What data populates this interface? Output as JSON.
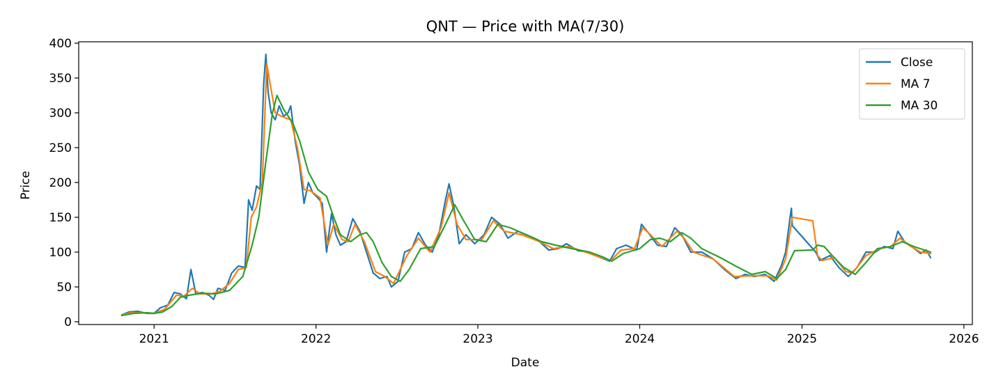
{
  "chart_data": {
    "type": "line",
    "title": "QNT — Price with MA(7/30)",
    "xlabel": "Date",
    "ylabel": "Price",
    "x_range": [
      "2020-07-15",
      "2026-01-20"
    ],
    "ylim": [
      -4,
      402
    ],
    "x_ticks": [
      "2021-01-01",
      "2022-01-01",
      "2023-01-01",
      "2024-01-01",
      "2025-01-01",
      "2026-01-01"
    ],
    "x_tick_labels": [
      "2021",
      "2022",
      "2023",
      "2024",
      "2025",
      "2026"
    ],
    "y_ticks": [
      0,
      50,
      100,
      150,
      200,
      250,
      300,
      350,
      400
    ],
    "y_tick_labels": [
      "0",
      "50",
      "100",
      "150",
      "200",
      "250",
      "300",
      "350",
      "400"
    ],
    "grid": false,
    "legend_position": "top-right",
    "series": [
      {
        "name": "Close",
        "color": "#1f77b4",
        "points": [
          [
            "2020-10-20",
            10
          ],
          [
            "2020-11-05",
            14
          ],
          [
            "2020-11-25",
            15
          ],
          [
            "2020-12-15",
            12
          ],
          [
            "2021-01-01",
            12
          ],
          [
            "2021-01-15",
            20
          ],
          [
            "2021-02-01",
            24
          ],
          [
            "2021-02-15",
            42
          ],
          [
            "2021-03-01",
            40
          ],
          [
            "2021-03-15",
            33
          ],
          [
            "2021-03-25",
            75
          ],
          [
            "2021-04-05",
            40
          ],
          [
            "2021-04-20",
            42
          ],
          [
            "2021-05-05",
            38
          ],
          [
            "2021-05-15",
            32
          ],
          [
            "2021-05-25",
            48
          ],
          [
            "2021-06-10",
            45
          ],
          [
            "2021-06-25",
            70
          ],
          [
            "2021-07-10",
            80
          ],
          [
            "2021-07-25",
            78
          ],
          [
            "2021-08-02",
            175
          ],
          [
            "2021-08-10",
            160
          ],
          [
            "2021-08-20",
            195
          ],
          [
            "2021-08-28",
            190
          ],
          [
            "2021-09-05",
            340
          ],
          [
            "2021-09-10",
            384
          ],
          [
            "2021-09-15",
            330
          ],
          [
            "2021-09-22",
            300
          ],
          [
            "2021-10-01",
            290
          ],
          [
            "2021-10-10",
            310
          ],
          [
            "2021-10-20",
            295
          ],
          [
            "2021-10-30",
            300
          ],
          [
            "2021-11-05",
            310
          ],
          [
            "2021-11-15",
            260
          ],
          [
            "2021-11-25",
            225
          ],
          [
            "2021-12-05",
            170
          ],
          [
            "2021-12-15",
            200
          ],
          [
            "2021-12-25",
            185
          ],
          [
            "2022-01-05",
            178
          ],
          [
            "2022-01-15",
            170
          ],
          [
            "2022-01-25",
            100
          ],
          [
            "2022-02-05",
            155
          ],
          [
            "2022-02-15",
            125
          ],
          [
            "2022-02-25",
            110
          ],
          [
            "2022-03-10",
            115
          ],
          [
            "2022-03-25",
            148
          ],
          [
            "2022-04-10",
            130
          ],
          [
            "2022-04-25",
            100
          ],
          [
            "2022-05-10",
            70
          ],
          [
            "2022-05-25",
            62
          ],
          [
            "2022-06-10",
            65
          ],
          [
            "2022-06-20",
            50
          ],
          [
            "2022-07-05",
            58
          ],
          [
            "2022-07-20",
            100
          ],
          [
            "2022-08-05",
            105
          ],
          [
            "2022-08-20",
            128
          ],
          [
            "2022-09-05",
            110
          ],
          [
            "2022-09-20",
            100
          ],
          [
            "2022-10-05",
            125
          ],
          [
            "2022-10-20",
            175
          ],
          [
            "2022-10-28",
            198
          ],
          [
            "2022-11-08",
            165
          ],
          [
            "2022-11-20",
            112
          ],
          [
            "2022-12-05",
            125
          ],
          [
            "2022-12-25",
            112
          ],
          [
            "2023-01-15",
            125
          ],
          [
            "2023-02-01",
            150
          ],
          [
            "2023-02-20",
            140
          ],
          [
            "2023-03-10",
            120
          ],
          [
            "2023-04-01",
            130
          ],
          [
            "2023-04-20",
            125
          ],
          [
            "2023-05-15",
            118
          ],
          [
            "2023-06-10",
            103
          ],
          [
            "2023-07-01",
            105
          ],
          [
            "2023-07-20",
            112
          ],
          [
            "2023-08-15",
            102
          ],
          [
            "2023-09-10",
            100
          ],
          [
            "2023-10-05",
            92
          ],
          [
            "2023-10-25",
            87
          ],
          [
            "2023-11-10",
            105
          ],
          [
            "2023-12-01",
            110
          ],
          [
            "2023-12-25",
            103
          ],
          [
            "2024-01-05",
            140
          ],
          [
            "2024-01-20",
            128
          ],
          [
            "2024-02-10",
            110
          ],
          [
            "2024-03-01",
            108
          ],
          [
            "2024-03-20",
            135
          ],
          [
            "2024-04-05",
            125
          ],
          [
            "2024-04-25",
            100
          ],
          [
            "2024-05-20",
            100
          ],
          [
            "2024-06-15",
            90
          ],
          [
            "2024-07-10",
            75
          ],
          [
            "2024-08-05",
            62
          ],
          [
            "2024-08-25",
            68
          ],
          [
            "2024-09-15",
            65
          ],
          [
            "2024-10-10",
            68
          ],
          [
            "2024-10-30",
            58
          ],
          [
            "2024-11-15",
            80
          ],
          [
            "2024-11-25",
            100
          ],
          [
            "2024-12-05",
            150
          ],
          [
            "2024-12-08",
            163
          ],
          [
            "2024-12-10",
            138
          ],
          [
            "2025-02-01",
            100
          ],
          [
            "2025-02-10",
            88
          ],
          [
            "2025-03-05",
            95
          ],
          [
            "2025-03-25",
            78
          ],
          [
            "2025-04-15",
            65
          ],
          [
            "2025-05-05",
            78
          ],
          [
            "2025-05-25",
            100
          ],
          [
            "2025-06-15",
            100
          ],
          [
            "2025-07-05",
            108
          ],
          [
            "2025-07-25",
            105
          ],
          [
            "2025-08-05",
            130
          ],
          [
            "2025-08-20",
            115
          ],
          [
            "2025-09-05",
            108
          ],
          [
            "2025-09-25",
            98
          ],
          [
            "2025-10-08",
            103
          ],
          [
            "2025-10-18",
            92
          ]
        ]
      },
      {
        "name": "MA 7",
        "color": "#ff7f0e",
        "points": [
          [
            "2020-10-20",
            10
          ],
          [
            "2020-11-10",
            13
          ],
          [
            "2020-12-01",
            13
          ],
          [
            "2021-01-01",
            12
          ],
          [
            "2021-01-25",
            18
          ],
          [
            "2021-02-20",
            38
          ],
          [
            "2021-03-10",
            37
          ],
          [
            "2021-03-28",
            48
          ],
          [
            "2021-04-15",
            40
          ],
          [
            "2021-05-10",
            40
          ],
          [
            "2021-05-30",
            44
          ],
          [
            "2021-06-20",
            55
          ],
          [
            "2021-07-10",
            75
          ],
          [
            "2021-07-28",
            78
          ],
          [
            "2021-08-08",
            150
          ],
          [
            "2021-08-20",
            165
          ],
          [
            "2021-09-02",
            200
          ],
          [
            "2021-09-12",
            370
          ],
          [
            "2021-09-20",
            340
          ],
          [
            "2021-10-01",
            300
          ],
          [
            "2021-10-15",
            295
          ],
          [
            "2021-11-05",
            290
          ],
          [
            "2021-11-20",
            250
          ],
          [
            "2021-12-05",
            190
          ],
          [
            "2021-12-20",
            188
          ],
          [
            "2022-01-10",
            178
          ],
          [
            "2022-01-28",
            110
          ],
          [
            "2022-02-10",
            140
          ],
          [
            "2022-03-01",
            118
          ],
          [
            "2022-03-15",
            115
          ],
          [
            "2022-03-30",
            140
          ],
          [
            "2022-04-20",
            115
          ],
          [
            "2022-05-15",
            72
          ],
          [
            "2022-06-05",
            65
          ],
          [
            "2022-06-25",
            55
          ],
          [
            "2022-07-25",
            95
          ],
          [
            "2022-08-20",
            120
          ],
          [
            "2022-09-15",
            100
          ],
          [
            "2022-10-10",
            135
          ],
          [
            "2022-10-28",
            185
          ],
          [
            "2022-11-15",
            140
          ],
          [
            "2022-12-05",
            118
          ],
          [
            "2023-01-10",
            118
          ],
          [
            "2023-02-05",
            145
          ],
          [
            "2023-03-01",
            130
          ],
          [
            "2023-04-10",
            125
          ],
          [
            "2023-05-20",
            115
          ],
          [
            "2023-06-20",
            105
          ],
          [
            "2023-07-25",
            108
          ],
          [
            "2023-09-01",
            100
          ],
          [
            "2023-10-01",
            93
          ],
          [
            "2023-10-28",
            88
          ],
          [
            "2023-11-20",
            103
          ],
          [
            "2023-12-20",
            105
          ],
          [
            "2024-01-08",
            135
          ],
          [
            "2024-01-25",
            125
          ],
          [
            "2024-02-20",
            108
          ],
          [
            "2024-03-25",
            130
          ],
          [
            "2024-04-10",
            120
          ],
          [
            "2024-05-01",
            100
          ],
          [
            "2024-06-15",
            90
          ],
          [
            "2024-08-01",
            65
          ],
          [
            "2024-09-10",
            66
          ],
          [
            "2024-10-15",
            66
          ],
          [
            "2024-11-05",
            60
          ],
          [
            "2024-11-25",
            90
          ],
          [
            "2024-12-10",
            150
          ],
          [
            "2025-01-25",
            145
          ],
          [
            "2025-02-05",
            95
          ],
          [
            "2025-02-15",
            88
          ],
          [
            "2025-03-15",
            92
          ],
          [
            "2025-04-10",
            72
          ],
          [
            "2025-04-25",
            70
          ],
          [
            "2025-05-25",
            95
          ],
          [
            "2025-06-25",
            105
          ],
          [
            "2025-07-20",
            108
          ],
          [
            "2025-08-10",
            120
          ],
          [
            "2025-08-30",
            110
          ],
          [
            "2025-09-25",
            100
          ],
          [
            "2025-10-18",
            98
          ]
        ]
      },
      {
        "name": "MA 30",
        "color": "#2ca02c",
        "points": [
          [
            "2020-10-20",
            9
          ],
          [
            "2020-11-15",
            12
          ],
          [
            "2020-12-15",
            13
          ],
          [
            "2021-01-01",
            12
          ],
          [
            "2021-01-20",
            14
          ],
          [
            "2021-02-10",
            22
          ],
          [
            "2021-03-01",
            35
          ],
          [
            "2021-03-20",
            38
          ],
          [
            "2021-04-20",
            41
          ],
          [
            "2021-05-20",
            40
          ],
          [
            "2021-06-20",
            45
          ],
          [
            "2021-07-20",
            65
          ],
          [
            "2021-08-10",
            110
          ],
          [
            "2021-08-25",
            150
          ],
          [
            "2021-09-10",
            230
          ],
          [
            "2021-09-25",
            300
          ],
          [
            "2021-10-05",
            325
          ],
          [
            "2021-10-20",
            305
          ],
          [
            "2021-11-10",
            285
          ],
          [
            "2021-11-25",
            260
          ],
          [
            "2021-12-15",
            215
          ],
          [
            "2022-01-05",
            190
          ],
          [
            "2022-01-25",
            180
          ],
          [
            "2022-02-10",
            150
          ],
          [
            "2022-02-25",
            125
          ],
          [
            "2022-03-20",
            115
          ],
          [
            "2022-04-10",
            125
          ],
          [
            "2022-04-25",
            128
          ],
          [
            "2022-05-10",
            115
          ],
          [
            "2022-05-30",
            85
          ],
          [
            "2022-06-20",
            65
          ],
          [
            "2022-07-10",
            58
          ],
          [
            "2022-07-30",
            75
          ],
          [
            "2022-08-25",
            105
          ],
          [
            "2022-09-25",
            108
          ],
          [
            "2022-10-20",
            140
          ],
          [
            "2022-11-10",
            168
          ],
          [
            "2022-11-30",
            145
          ],
          [
            "2022-12-25",
            118
          ],
          [
            "2023-01-20",
            115
          ],
          [
            "2023-02-15",
            140
          ],
          [
            "2023-03-15",
            135
          ],
          [
            "2023-04-20",
            125
          ],
          [
            "2023-05-25",
            115
          ],
          [
            "2023-06-25",
            110
          ],
          [
            "2023-08-01",
            105
          ],
          [
            "2023-09-10",
            100
          ],
          [
            "2023-10-10",
            93
          ],
          [
            "2023-10-30",
            87
          ],
          [
            "2023-11-25",
            98
          ],
          [
            "2024-01-01",
            105
          ],
          [
            "2024-01-25",
            118
          ],
          [
            "2024-02-15",
            120
          ],
          [
            "2024-03-10",
            115
          ],
          [
            "2024-04-05",
            128
          ],
          [
            "2024-04-25",
            120
          ],
          [
            "2024-05-20",
            105
          ],
          [
            "2024-07-01",
            92
          ],
          [
            "2024-08-10",
            78
          ],
          [
            "2024-09-10",
            68
          ],
          [
            "2024-10-10",
            72
          ],
          [
            "2024-11-05",
            62
          ],
          [
            "2024-11-25",
            75
          ],
          [
            "2024-12-15",
            102
          ],
          [
            "2025-01-25",
            103
          ],
          [
            "2025-02-05",
            110
          ],
          [
            "2025-02-20",
            108
          ],
          [
            "2025-03-10",
            95
          ],
          [
            "2025-04-05",
            78
          ],
          [
            "2025-05-01",
            68
          ],
          [
            "2025-05-25",
            85
          ],
          [
            "2025-06-20",
            105
          ],
          [
            "2025-07-20",
            108
          ],
          [
            "2025-08-15",
            115
          ],
          [
            "2025-09-10",
            108
          ],
          [
            "2025-10-18",
            100
          ]
        ]
      }
    ]
  }
}
